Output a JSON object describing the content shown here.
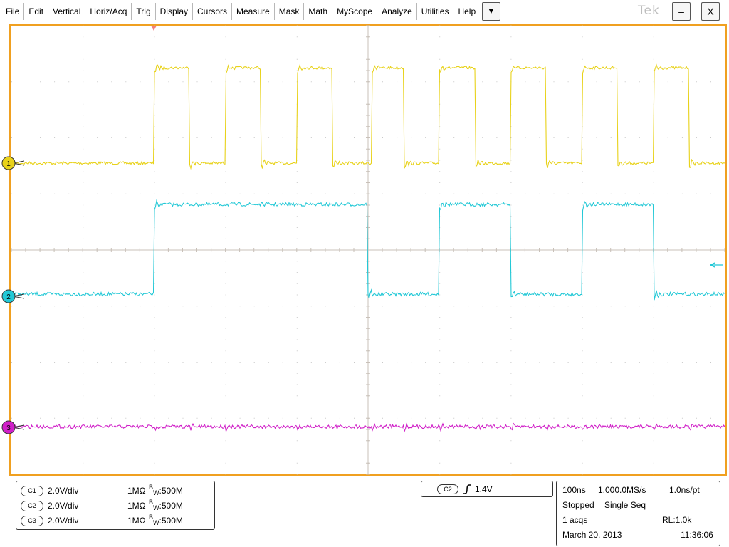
{
  "menu": {
    "items": [
      "File",
      "Edit",
      "Vertical",
      "Horiz/Acq",
      "Trig",
      "Display",
      "Cursors",
      "Measure",
      "Mask",
      "Math",
      "MyScope",
      "Analyze",
      "Utilities",
      "Help"
    ],
    "more_glyph": "▼"
  },
  "brand": {
    "logo_text": "Tek"
  },
  "window": {
    "minimize_glyph": "–",
    "close_glyph": "X"
  },
  "colors": {
    "frame": "#f0a020",
    "ch1": "#e8d21a",
    "ch2": "#22c8d6",
    "ch3": "#d020c8",
    "trigger_marker": "#f08080"
  },
  "markers": {
    "ch1": "1",
    "ch2": "2",
    "ch3": "3"
  },
  "channels": [
    {
      "id": "C1",
      "scale": "2.0V/div",
      "impedance": "1MΩ",
      "bw_sup": "B",
      "bw_sub": "W",
      "bw_value": ":500M"
    },
    {
      "id": "C2",
      "scale": "2.0V/div",
      "impedance": "1MΩ",
      "bw_sup": "B",
      "bw_sub": "W",
      "bw_value": ":500M"
    },
    {
      "id": "C3",
      "scale": "2.0V/div",
      "impedance": "1MΩ",
      "bw_sup": "B",
      "bw_sub": "W",
      "bw_value": ":500M"
    }
  ],
  "trigger": {
    "source": "C2",
    "level": "1.4V"
  },
  "acquisition": {
    "timebase": "100ns",
    "sample_rate": "1,000.0MS/s",
    "resolution": "1.0ns/pt",
    "state": "Stopped",
    "mode": "Single Seq",
    "acqs": "1 acqs",
    "record_length": "RL:1.0k",
    "date": "March 20, 2013",
    "time": "11:36:06"
  },
  "waveform_data": {
    "x_divisions": 10,
    "y_divisions": 8,
    "ch1_edges_div": [
      2.0,
      2.5,
      3.0,
      3.5,
      4.0,
      4.5,
      5.05,
      5.5,
      6.0,
      6.5,
      7.0,
      7.5,
      8.0,
      8.5,
      9.0,
      9.5
    ],
    "ch2_edges_div": [
      2.0,
      5.0,
      6.0,
      7.0,
      8.0,
      9.0
    ],
    "ch1_low_div": 0,
    "ch1_high_div": 1.7,
    "ch2_low_div": 0,
    "ch2_high_div": 1.6,
    "ch3_level_div": 0
  }
}
